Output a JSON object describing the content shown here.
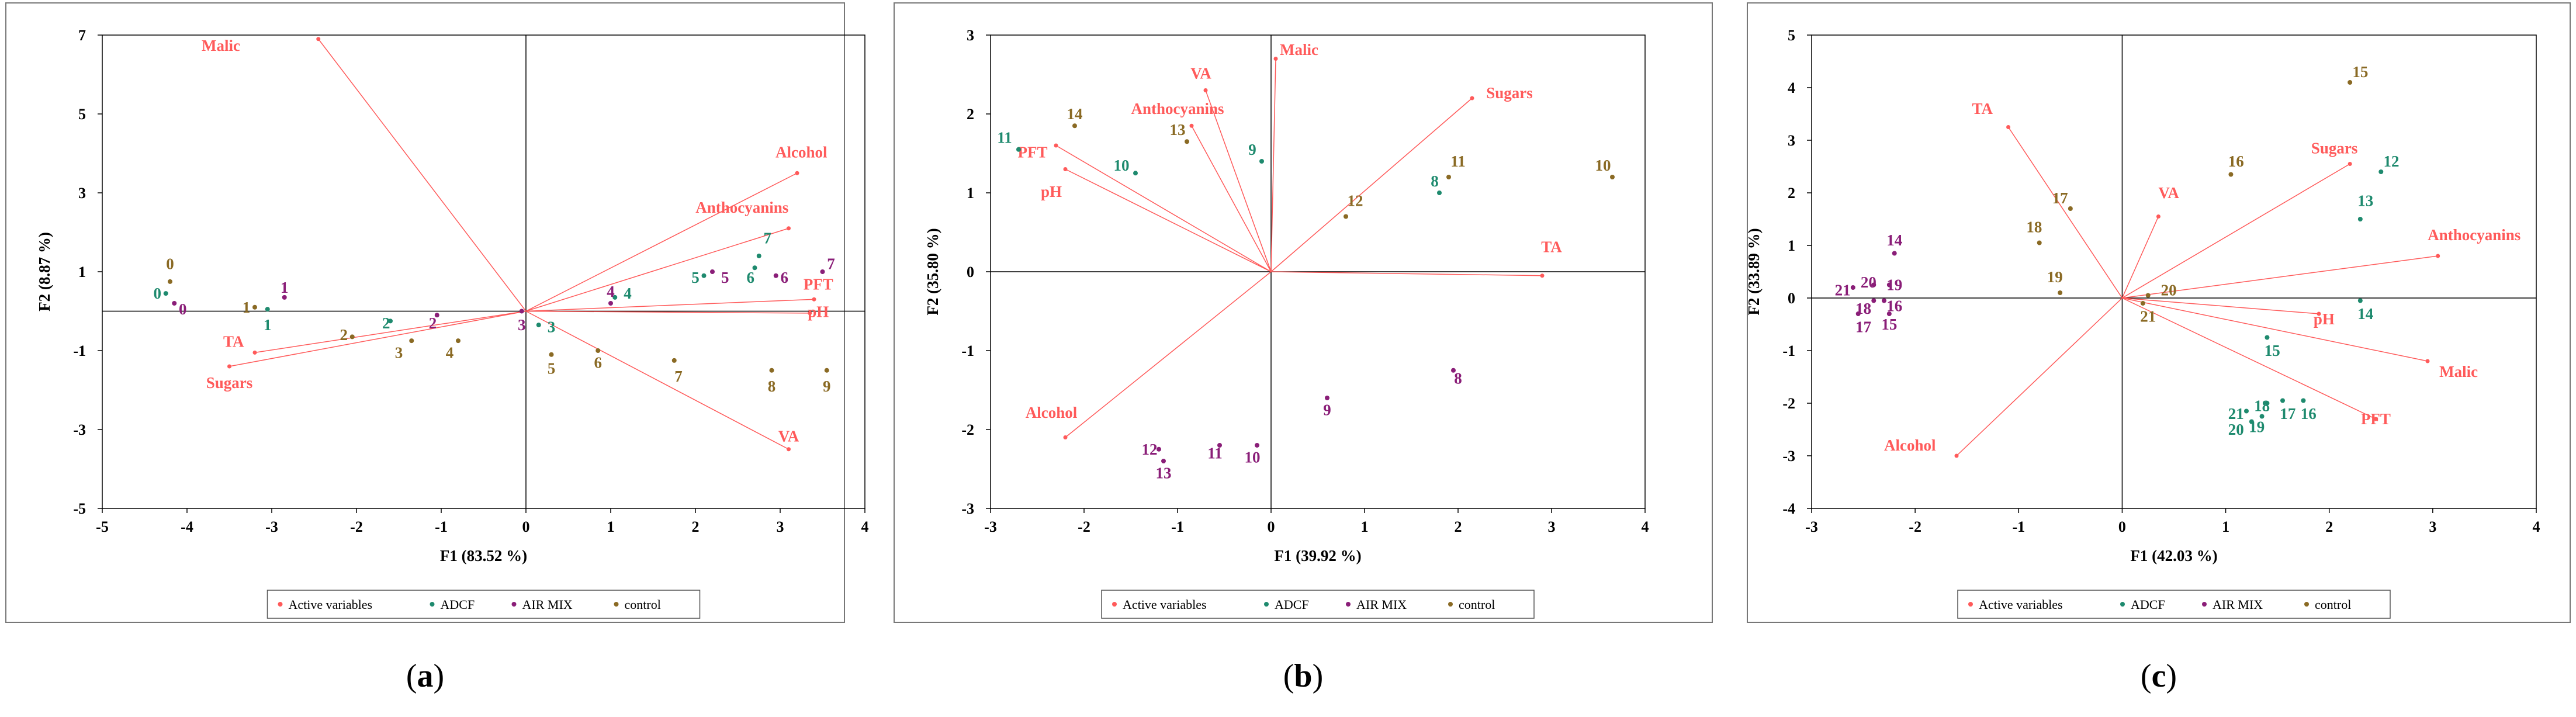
{
  "colors": {
    "active": "#ff5a5a",
    "adcf": "#1e8a6e",
    "airmix": "#8a1e78",
    "control": "#8a6a24",
    "axis": "#000000",
    "frame": "#777777"
  },
  "chart_data": [
    {
      "type": "scatter",
      "panel_label": "a",
      "xlabel": "F1 (83.52 %)",
      "ylabel": "F2 (8.87 %)",
      "xlim": [
        -5,
        4
      ],
      "ylim": [
        -5,
        7
      ],
      "xticks": [
        "-5",
        "-4",
        "-3",
        "-2",
        "-1",
        "0",
        "1",
        "2",
        "3",
        "4"
      ],
      "yticks": [
        "-5",
        "-3",
        "-1",
        "1",
        "3",
        "5",
        "7"
      ],
      "legend": [
        "Active variables",
        "ADCF",
        "AIR MIX",
        "control"
      ],
      "variables": [
        {
          "name": "Malic",
          "x": -2.45,
          "y": 6.9,
          "lx": -3.6,
          "ly": 6.6
        },
        {
          "name": "Alcohol",
          "x": 3.2,
          "y": 3.5,
          "lx": 3.25,
          "ly": 3.9
        },
        {
          "name": "Anthocyanins",
          "x": 3.1,
          "y": 2.1,
          "lx": 2.55,
          "ly": 2.5
        },
        {
          "name": "PFT",
          "x": 3.4,
          "y": 0.3,
          "lx": 3.45,
          "ly": 0.55
        },
        {
          "name": "pH",
          "x": 3.35,
          "y": -0.05,
          "lx": 3.45,
          "ly": -0.15
        },
        {
          "name": "VA",
          "x": 3.1,
          "y": -3.5,
          "lx": 3.1,
          "ly": -3.3
        },
        {
          "name": "TA",
          "x": -3.2,
          "y": -1.05,
          "lx": -3.45,
          "ly": -0.9
        },
        {
          "name": "Sugars",
          "x": -3.5,
          "y": -1.4,
          "lx": -3.5,
          "ly": -1.95
        }
      ],
      "observations": {
        "ADCF": [
          {
            "label": "0",
            "x": -4.25,
            "y": 0.45,
            "lx": -4.35,
            "ly": 0.45
          },
          {
            "label": "1",
            "x": -3.05,
            "y": 0.05,
            "lx": -3.05,
            "ly": -0.35
          },
          {
            "label": "2",
            "x": -1.6,
            "y": -0.25,
            "lx": -1.65,
            "ly": -0.3
          },
          {
            "label": "3",
            "x": 0.15,
            "y": -0.35,
            "lx": 0.3,
            "ly": -0.4
          },
          {
            "label": "4",
            "x": 1.05,
            "y": 0.35,
            "lx": 1.2,
            "ly": 0.45
          },
          {
            "label": "5",
            "x": 2.1,
            "y": 0.9,
            "lx": 2.0,
            "ly": 0.85
          },
          {
            "label": "6",
            "x": 2.7,
            "y": 1.1,
            "lx": 2.65,
            "ly": 0.85
          },
          {
            "label": "7",
            "x": 2.75,
            "y": 1.4,
            "lx": 2.85,
            "ly": 1.85
          }
        ],
        "AIR MIX": [
          {
            "label": "0",
            "x": -4.15,
            "y": 0.2,
            "lx": -4.05,
            "ly": 0.05
          },
          {
            "label": "1",
            "x": -2.85,
            "y": 0.35,
            "lx": -2.85,
            "ly": 0.6
          },
          {
            "label": "2",
            "x": -1.05,
            "y": -0.1,
            "lx": -1.1,
            "ly": -0.3
          },
          {
            "label": "3",
            "x": -0.05,
            "y": 0.0,
            "lx": -0.05,
            "ly": -0.35
          },
          {
            "label": "4",
            "x": 1.0,
            "y": 0.2,
            "lx": 1.0,
            "ly": 0.5
          },
          {
            "label": "5",
            "x": 2.2,
            "y": 1.0,
            "lx": 2.35,
            "ly": 0.85
          },
          {
            "label": "6",
            "x": 2.95,
            "y": 0.9,
            "lx": 3.05,
            "ly": 0.85
          },
          {
            "label": "7",
            "x": 3.5,
            "y": 1.0,
            "lx": 3.6,
            "ly": 1.2
          }
        ],
        "control": [
          {
            "label": "0",
            "x": -4.2,
            "y": 0.75,
            "lx": -4.2,
            "ly": 1.2
          },
          {
            "label": "1",
            "x": -3.2,
            "y": 0.1,
            "lx": -3.3,
            "ly": 0.1
          },
          {
            "label": "2",
            "x": -2.05,
            "y": -0.65,
            "lx": -2.15,
            "ly": -0.6
          },
          {
            "label": "3",
            "x": -1.35,
            "y": -0.75,
            "lx": -1.5,
            "ly": -1.05
          },
          {
            "label": "4",
            "x": -0.8,
            "y": -0.75,
            "lx": -0.9,
            "ly": -1.05
          },
          {
            "label": "5",
            "x": 0.3,
            "y": -1.1,
            "lx": 0.3,
            "ly": -1.45
          },
          {
            "label": "6",
            "x": 0.85,
            "y": -1.0,
            "lx": 0.85,
            "ly": -1.3
          },
          {
            "label": "7",
            "x": 1.75,
            "y": -1.25,
            "lx": 1.8,
            "ly": -1.65
          },
          {
            "label": "8",
            "x": 2.9,
            "y": -1.5,
            "lx": 2.9,
            "ly": -1.9
          },
          {
            "label": "9",
            "x": 3.55,
            "y": -1.5,
            "lx": 3.55,
            "ly": -1.9
          }
        ]
      }
    },
    {
      "type": "scatter",
      "panel_label": "b",
      "xlabel": "F1 (39.92 %)",
      "ylabel": "F2 (35.80 %)",
      "xlim": [
        -3,
        4
      ],
      "ylim": [
        -3,
        3
      ],
      "xticks": [
        "-3",
        "-2",
        "-1",
        "0",
        "1",
        "2",
        "3",
        "4"
      ],
      "yticks": [
        "-3",
        "-2",
        "-1",
        "0",
        "1",
        "2",
        "3"
      ],
      "legend": [
        "Active variables",
        "ADCF",
        "AIR MIX",
        "control"
      ],
      "variables": [
        {
          "name": "Malic",
          "x": 0.05,
          "y": 2.7,
          "lx": 0.3,
          "ly": 2.75
        },
        {
          "name": "Sugars",
          "x": 2.15,
          "y": 2.2,
          "lx": 2.55,
          "ly": 2.2
        },
        {
          "name": "VA",
          "x": -0.7,
          "y": 2.3,
          "lx": -0.75,
          "ly": 2.45
        },
        {
          "name": "Anthocyanins",
          "x": -0.85,
          "y": 1.85,
          "lx": -1.0,
          "ly": 2.0
        },
        {
          "name": "PFT",
          "x": -2.3,
          "y": 1.6,
          "lx": -2.55,
          "ly": 1.45
        },
        {
          "name": "pH",
          "x": -2.2,
          "y": 1.3,
          "lx": -2.35,
          "ly": 0.95
        },
        {
          "name": "TA",
          "x": 2.9,
          "y": -0.05,
          "lx": 3.0,
          "ly": 0.25
        },
        {
          "name": "Alcohol",
          "x": -2.2,
          "y": -2.1,
          "lx": -2.35,
          "ly": -1.85
        }
      ],
      "observations": {
        "ADCF": [
          {
            "label": "8",
            "x": 1.8,
            "y": 1.0,
            "lx": 1.75,
            "ly": 1.15
          },
          {
            "label": "9",
            "x": -0.1,
            "y": 1.4,
            "lx": -0.2,
            "ly": 1.55
          },
          {
            "label": "10",
            "x": -1.45,
            "y": 1.25,
            "lx": -1.6,
            "ly": 1.35
          },
          {
            "label": "11",
            "x": -2.7,
            "y": 1.55,
            "lx": -2.85,
            "ly": 1.7
          }
        ],
        "AIR MIX": [
          {
            "label": "8",
            "x": 1.95,
            "y": -1.25,
            "lx": 2.0,
            "ly": -1.35
          },
          {
            "label": "9",
            "x": 0.6,
            "y": -1.6,
            "lx": 0.6,
            "ly": -1.75
          },
          {
            "label": "10",
            "x": -0.15,
            "y": -2.2,
            "lx": -0.2,
            "ly": -2.35
          },
          {
            "label": "11",
            "x": -0.55,
            "y": -2.2,
            "lx": -0.6,
            "ly": -2.3
          },
          {
            "label": "12",
            "x": -1.2,
            "y": -2.25,
            "lx": -1.3,
            "ly": -2.25
          },
          {
            "label": "13",
            "x": -1.15,
            "y": -2.4,
            "lx": -1.15,
            "ly": -2.55
          }
        ],
        "control": [
          {
            "label": "10",
            "x": 3.65,
            "y": 1.2,
            "lx": 3.55,
            "ly": 1.35
          },
          {
            "label": "11",
            "x": 1.9,
            "y": 1.2,
            "lx": 2.0,
            "ly": 1.4
          },
          {
            "label": "12",
            "x": 0.8,
            "y": 0.7,
            "lx": 0.9,
            "ly": 0.9
          },
          {
            "label": "13",
            "x": -0.9,
            "y": 1.65,
            "lx": -1.0,
            "ly": 1.8
          },
          {
            "label": "14",
            "x": -2.1,
            "y": 1.85,
            "lx": -2.1,
            "ly": 2.0
          }
        ]
      }
    },
    {
      "type": "scatter",
      "panel_label": "c",
      "xlabel": "F1 (42.03 %)",
      "ylabel": "F2 (33.89 %)",
      "xlim": [
        -3,
        4
      ],
      "ylim": [
        -4,
        5
      ],
      "xticks": [
        "-3",
        "-2",
        "-1",
        "0",
        "1",
        "2",
        "3",
        "4"
      ],
      "yticks": [
        "-4",
        "-3",
        "-2",
        "-1",
        "0",
        "1",
        "2",
        "3",
        "4",
        "5"
      ],
      "legend": [
        "Active variables",
        "ADCF",
        "AIR MIX",
        "control"
      ],
      "variables": [
        {
          "name": "TA",
          "x": -1.1,
          "y": 3.25,
          "lx": -1.35,
          "ly": 3.5
        },
        {
          "name": "VA",
          "x": 0.35,
          "y": 1.55,
          "lx": 0.45,
          "ly": 1.9
        },
        {
          "name": "Sugars",
          "x": 2.2,
          "y": 2.55,
          "lx": 2.05,
          "ly": 2.75
        },
        {
          "name": "Anthocyanins",
          "x": 3.05,
          "y": 0.8,
          "lx": 3.4,
          "ly": 1.1
        },
        {
          "name": "pH",
          "x": 1.9,
          "y": -0.3,
          "lx": 1.95,
          "ly": -0.5
        },
        {
          "name": "Malic",
          "x": 2.95,
          "y": -1.2,
          "lx": 3.25,
          "ly": -1.5
        },
        {
          "name": "PFT",
          "x": 2.45,
          "y": -2.3,
          "lx": 2.45,
          "ly": -2.4
        },
        {
          "name": "Alcohol",
          "x": -1.6,
          "y": -3.0,
          "lx": -2.05,
          "ly": -2.9
        }
      ],
      "observations": {
        "ADCF": [
          {
            "label": "12",
            "x": 2.5,
            "y": 2.4,
            "lx": 2.6,
            "ly": 2.6
          },
          {
            "label": "13",
            "x": 2.3,
            "y": 1.5,
            "lx": 2.35,
            "ly": 1.85
          },
          {
            "label": "14",
            "x": 2.3,
            "y": -0.05,
            "lx": 2.35,
            "ly": -0.3
          },
          {
            "label": "15",
            "x": 1.4,
            "y": -0.75,
            "lx": 1.45,
            "ly": -1.0
          },
          {
            "label": "16",
            "x": 1.75,
            "y": -1.95,
            "lx": 1.8,
            "ly": -2.2
          },
          {
            "label": "17",
            "x": 1.55,
            "y": -1.95,
            "lx": 1.6,
            "ly": -2.2
          },
          {
            "label": "18",
            "x": 1.4,
            "y": -2.0,
            "lx": 1.35,
            "ly": -2.05
          },
          {
            "label": "19",
            "x": 1.35,
            "y": -2.25,
            "lx": 1.3,
            "ly": -2.45
          },
          {
            "label": "20",
            "x": 1.25,
            "y": -2.35,
            "lx": 1.1,
            "ly": -2.5
          },
          {
            "label": "21",
            "x": 1.2,
            "y": -2.15,
            "lx": 1.1,
            "ly": -2.2
          }
        ],
        "AIR MIX": [
          {
            "label": "14",
            "x": -2.2,
            "y": 0.85,
            "lx": -2.2,
            "ly": 1.1
          },
          {
            "label": "15",
            "x": -2.25,
            "y": -0.3,
            "lx": -2.25,
            "ly": -0.5
          },
          {
            "label": "16",
            "x": -2.3,
            "y": -0.05,
            "lx": -2.2,
            "ly": -0.15
          },
          {
            "label": "17",
            "x": -2.55,
            "y": -0.3,
            "lx": -2.5,
            "ly": -0.55
          },
          {
            "label": "18",
            "x": -2.4,
            "y": -0.05,
            "lx": -2.5,
            "ly": -0.2
          },
          {
            "label": "19",
            "x": -2.25,
            "y": 0.25,
            "lx": -2.2,
            "ly": 0.25
          },
          {
            "label": "20",
            "x": -2.4,
            "y": 0.25,
            "lx": -2.45,
            "ly": 0.3
          },
          {
            "label": "21",
            "x": -2.6,
            "y": 0.2,
            "lx": -2.7,
            "ly": 0.15
          }
        ],
        "control": [
          {
            "label": "15",
            "x": 2.2,
            "y": 4.1,
            "lx": 2.3,
            "ly": 4.3
          },
          {
            "label": "16",
            "x": 1.05,
            "y": 2.35,
            "lx": 1.1,
            "ly": 2.6
          },
          {
            "label": "17",
            "x": -0.5,
            "y": 1.7,
            "lx": -0.6,
            "ly": 1.9
          },
          {
            "label": "18",
            "x": -0.8,
            "y": 1.05,
            "lx": -0.85,
            "ly": 1.35
          },
          {
            "label": "19",
            "x": -0.6,
            "y": 0.1,
            "lx": -0.65,
            "ly": 0.4
          },
          {
            "label": "20",
            "x": 0.25,
            "y": 0.05,
            "lx": 0.45,
            "ly": 0.15
          },
          {
            "label": "21",
            "x": 0.2,
            "y": -0.1,
            "lx": 0.25,
            "ly": -0.35
          }
        ]
      }
    }
  ]
}
